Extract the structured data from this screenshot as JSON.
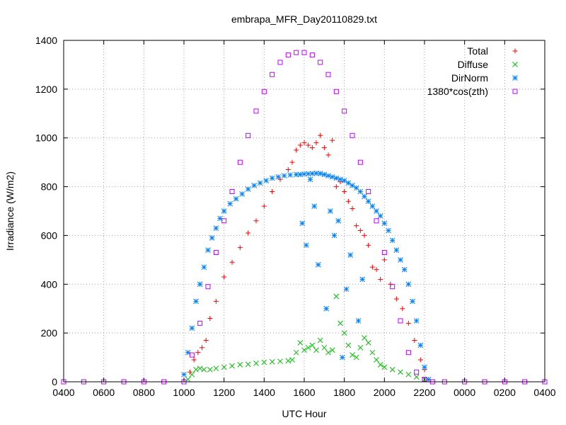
{
  "chart_data": {
    "type": "scatter",
    "title": "embrapa_MFR_Day20110829.txt",
    "xlabel": "UTC Hour",
    "ylabel": "Irradiance (W/m2)",
    "xlim": [
      4,
      28
    ],
    "ylim": [
      0,
      1400
    ],
    "x_tick_values": [
      4,
      6,
      8,
      10,
      12,
      14,
      16,
      18,
      20,
      22,
      24,
      26,
      28
    ],
    "x_tick_labels": [
      "0400",
      "0600",
      "0800",
      "1000",
      "1200",
      "1400",
      "1600",
      "1800",
      "2000",
      "2200",
      "0000",
      "0200",
      "0400"
    ],
    "y_ticks": [
      0,
      200,
      400,
      600,
      800,
      1000,
      1200,
      1400
    ],
    "grid": true,
    "legend_position": "top-right",
    "series": [
      {
        "name": "Total",
        "marker": "plus",
        "color": "#ff0000",
        "x": [
          10.3,
          10.5,
          10.7,
          10.9,
          11.1,
          11.3,
          11.6,
          12.0,
          12.4,
          12.8,
          13.2,
          13.6,
          14.0,
          14.4,
          14.8,
          15.2,
          15.4,
          15.6,
          15.8,
          16.0,
          16.2,
          16.4,
          16.6,
          16.8,
          17.0,
          17.2,
          17.4,
          17.6,
          17.8,
          18.0,
          18.2,
          18.4,
          18.6,
          18.8,
          19.0,
          19.2,
          19.4,
          19.6,
          19.8,
          20.0,
          20.3,
          20.6,
          20.9,
          21.2,
          21.5,
          21.8,
          22.0
        ],
        "y": [
          40,
          90,
          120,
          140,
          170,
          260,
          330,
          430,
          490,
          550,
          610,
          660,
          720,
          780,
          830,
          870,
          900,
          950,
          970,
          980,
          970,
          960,
          980,
          1010,
          960,
          930,
          990,
          800,
          820,
          780,
          740,
          710,
          640,
          620,
          600,
          560,
          470,
          460,
          420,
          500,
          400,
          340,
          300,
          240,
          170,
          90,
          50
        ]
      },
      {
        "name": "Diffuse",
        "marker": "cross",
        "color": "#00c000",
        "x": [
          10.2,
          10.4,
          10.6,
          10.8,
          11.0,
          11.3,
          11.6,
          12.0,
          12.4,
          12.8,
          13.2,
          13.6,
          14.0,
          14.4,
          14.8,
          15.2,
          15.4,
          15.6,
          15.8,
          16.0,
          16.2,
          16.4,
          16.6,
          16.8,
          17.0,
          17.2,
          17.4,
          17.6,
          17.8,
          18.0,
          18.2,
          18.4,
          18.6,
          18.8,
          19.0,
          19.2,
          19.4,
          19.6,
          19.8,
          20.0,
          20.4,
          20.8,
          21.2,
          21.6,
          22.0
        ],
        "y": [
          10,
          30,
          50,
          55,
          50,
          50,
          55,
          60,
          65,
          70,
          72,
          76,
          80,
          82,
          84,
          86,
          90,
          120,
          160,
          130,
          140,
          150,
          130,
          170,
          140,
          120,
          130,
          350,
          240,
          200,
          150,
          110,
          100,
          140,
          180,
          160,
          120,
          90,
          70,
          60,
          50,
          40,
          30,
          20,
          10
        ]
      },
      {
        "name": "DirNorm",
        "marker": "star",
        "color": "#0080ff",
        "x": [
          10.0,
          10.2,
          10.4,
          10.6,
          10.8,
          11.0,
          11.2,
          11.4,
          11.6,
          11.8,
          12.0,
          12.3,
          12.6,
          12.9,
          13.2,
          13.5,
          13.8,
          14.1,
          14.4,
          14.7,
          15.0,
          15.3,
          15.6,
          15.8,
          16.0,
          16.2,
          16.4,
          16.6,
          16.8,
          17.0,
          17.2,
          17.4,
          17.6,
          17.8,
          18.0,
          18.2,
          18.4,
          18.6,
          18.8,
          19.0,
          19.2,
          19.4,
          19.6,
          19.8,
          20.0,
          20.2,
          20.4,
          20.6,
          20.8,
          21.0,
          21.2,
          21.4,
          21.6,
          21.8,
          22.0,
          22.2,
          15.9,
          16.1,
          16.3,
          16.5,
          16.7,
          17.1,
          17.3,
          17.5,
          17.7,
          17.9,
          18.1,
          18.3,
          18.7,
          18.9
        ],
        "y": [
          30,
          120,
          220,
          330,
          400,
          470,
          540,
          590,
          630,
          670,
          700,
          730,
          750,
          770,
          790,
          805,
          815,
          825,
          835,
          840,
          845,
          848,
          850,
          850,
          852,
          853,
          854,
          855,
          854,
          850,
          845,
          840,
          835,
          830,
          825,
          815,
          805,
          795,
          780,
          760,
          740,
          720,
          700,
          680,
          650,
          620,
          580,
          540,
          500,
          460,
          400,
          330,
          250,
          150,
          60,
          10,
          650,
          560,
          830,
          720,
          480,
          300,
          700,
          600,
          660,
          100,
          380,
          520,
          250,
          420
        ]
      },
      {
        "name": "1380*cos(zth)",
        "marker": "square",
        "color": "#c000ff",
        "x": [
          4.0,
          5.0,
          6.0,
          7.0,
          8.0,
          9.0,
          10.0,
          10.4,
          10.8,
          11.2,
          11.6,
          12.0,
          12.4,
          12.8,
          13.2,
          13.6,
          14.0,
          14.4,
          14.8,
          15.2,
          15.6,
          16.0,
          16.4,
          16.8,
          17.2,
          17.6,
          18.0,
          18.4,
          18.8,
          19.2,
          19.6,
          20.0,
          20.4,
          20.8,
          21.2,
          21.6,
          22.0,
          22.4,
          23.0,
          24.0,
          25.0,
          26.0,
          27.0,
          28.0
        ],
        "y": [
          0,
          0,
          0,
          0,
          0,
          0,
          0,
          110,
          240,
          390,
          530,
          660,
          780,
          900,
          1010,
          1110,
          1190,
          1260,
          1310,
          1340,
          1350,
          1350,
          1340,
          1310,
          1260,
          1190,
          1110,
          1010,
          900,
          780,
          660,
          530,
          390,
          250,
          120,
          40,
          10,
          0,
          0,
          0,
          0,
          0,
          0,
          0
        ]
      }
    ]
  }
}
